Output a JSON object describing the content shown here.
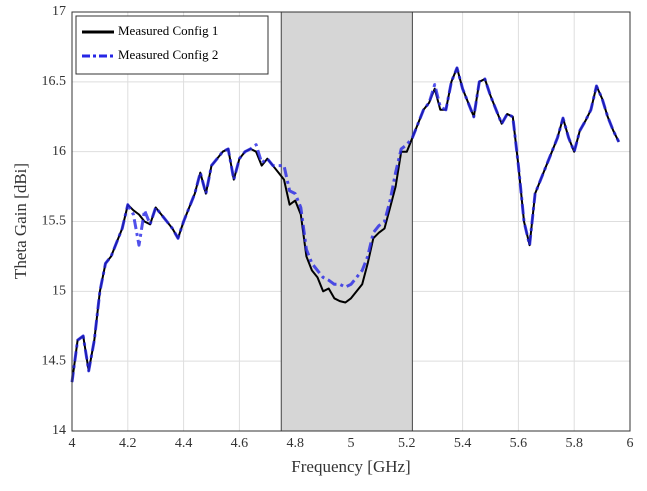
{
  "chart_data": {
    "type": "line",
    "xlabel": "Frequency [GHz]",
    "ylabel": "Theta Gain [dBi]",
    "xlim": [
      4,
      6
    ],
    "ylim": [
      14,
      17
    ],
    "xticks": [
      4,
      4.2,
      4.4,
      4.6,
      4.8,
      5,
      5.2,
      5.4,
      5.6,
      5.8,
      6
    ],
    "yticks": [
      14,
      14.5,
      15,
      15.5,
      16,
      16.5,
      17
    ],
    "grid": true,
    "legend": "upper left",
    "shaded_span": [
      4.75,
      5.22
    ],
    "x": [
      4.0,
      4.02,
      4.04,
      4.06,
      4.08,
      4.1,
      4.12,
      4.14,
      4.16,
      4.18,
      4.2,
      4.22,
      4.24,
      4.26,
      4.28,
      4.3,
      4.32,
      4.34,
      4.36,
      4.38,
      4.4,
      4.42,
      4.44,
      4.46,
      4.48,
      4.5,
      4.52,
      4.54,
      4.56,
      4.58,
      4.6,
      4.62,
      4.64,
      4.66,
      4.68,
      4.7,
      4.72,
      4.74,
      4.76,
      4.78,
      4.8,
      4.82,
      4.84,
      4.86,
      4.88,
      4.9,
      4.92,
      4.94,
      4.96,
      4.98,
      5.0,
      5.02,
      5.04,
      5.06,
      5.08,
      5.1,
      5.12,
      5.14,
      5.16,
      5.18,
      5.2,
      5.22,
      5.24,
      5.26,
      5.28,
      5.3,
      5.32,
      5.34,
      5.36,
      5.38,
      5.4,
      5.42,
      5.44,
      5.46,
      5.48,
      5.5,
      5.52,
      5.54,
      5.56,
      5.58,
      5.6,
      5.62,
      5.64,
      5.66,
      5.68,
      5.7,
      5.72,
      5.74,
      5.76,
      5.78,
      5.8,
      5.82,
      5.84,
      5.86,
      5.88,
      5.9,
      5.92,
      5.94,
      5.96
    ],
    "series": [
      {
        "name": "Measured Config 1",
        "color": "#000000",
        "values": [
          14.35,
          14.65,
          14.68,
          14.43,
          14.65,
          15.0,
          15.2,
          15.25,
          15.35,
          15.45,
          15.62,
          15.58,
          15.55,
          15.5,
          15.48,
          15.6,
          15.55,
          15.5,
          15.45,
          15.38,
          15.5,
          15.6,
          15.7,
          15.85,
          15.7,
          15.9,
          15.95,
          16.0,
          16.02,
          15.8,
          15.95,
          16.0,
          16.02,
          16.0,
          15.9,
          15.95,
          15.9,
          15.85,
          15.8,
          15.62,
          15.65,
          15.55,
          15.25,
          15.15,
          15.1,
          15.0,
          15.02,
          14.95,
          14.93,
          14.92,
          14.95,
          15.0,
          15.05,
          15.2,
          15.38,
          15.42,
          15.45,
          15.6,
          15.75,
          16.0,
          16.0,
          16.1,
          16.2,
          16.3,
          16.35,
          16.45,
          16.3,
          16.3,
          16.5,
          16.6,
          16.45,
          16.35,
          16.25,
          16.5,
          16.52,
          16.4,
          16.3,
          16.2,
          16.27,
          16.25,
          15.9,
          15.5,
          15.33,
          15.7,
          15.8,
          15.9,
          16.0,
          16.1,
          16.24,
          16.1,
          16.0,
          16.15,
          16.22,
          16.3,
          16.47,
          16.38,
          16.25,
          16.15,
          16.07
        ]
      },
      {
        "name": "Measured Config 2",
        "color": "#2626e6",
        "values": [
          14.35,
          14.65,
          14.68,
          14.43,
          14.65,
          15.0,
          15.2,
          15.25,
          15.35,
          15.45,
          15.62,
          15.55,
          15.33,
          15.58,
          15.48,
          15.6,
          15.55,
          15.5,
          15.45,
          15.38,
          15.5,
          15.6,
          15.7,
          15.85,
          15.7,
          15.9,
          15.95,
          16.0,
          16.02,
          15.8,
          15.95,
          16.0,
          16.02,
          16.05,
          15.92,
          15.95,
          15.9,
          15.9,
          15.9,
          15.72,
          15.7,
          15.6,
          15.3,
          15.2,
          15.15,
          15.1,
          15.08,
          15.05,
          15.05,
          15.03,
          15.05,
          15.1,
          15.15,
          15.25,
          15.42,
          15.47,
          15.5,
          15.65,
          15.85,
          16.02,
          16.05,
          16.1,
          16.2,
          16.3,
          16.35,
          16.48,
          16.32,
          16.3,
          16.5,
          16.6,
          16.45,
          16.35,
          16.25,
          16.5,
          16.52,
          16.4,
          16.3,
          16.2,
          16.27,
          16.25,
          15.9,
          15.5,
          15.33,
          15.7,
          15.8,
          15.9,
          16.0,
          16.1,
          16.24,
          16.1,
          16.0,
          16.15,
          16.22,
          16.3,
          16.47,
          16.38,
          16.25,
          16.15,
          16.07
        ]
      }
    ]
  }
}
